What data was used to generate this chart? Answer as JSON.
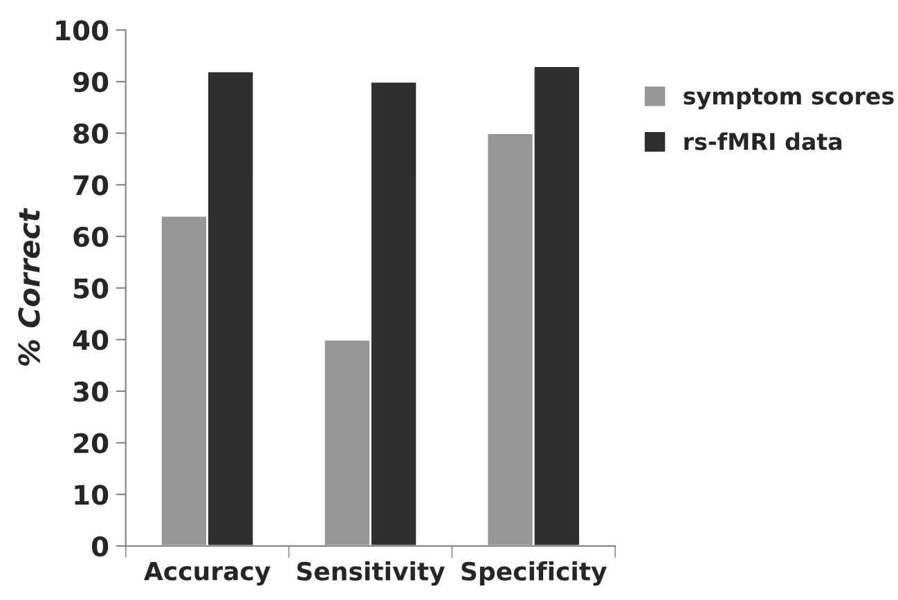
{
  "chart_data": {
    "type": "bar",
    "ylabel": "% Correct",
    "categories": [
      "Accuracy",
      "Sensitivity",
      "Specificity"
    ],
    "series": [
      {
        "name": "symptom scores",
        "color": "#969696",
        "values": [
          64,
          40,
          80
        ]
      },
      {
        "name": "rs-fMRI data",
        "color": "#2f2f2f",
        "values": [
          92,
          90,
          93
        ]
      }
    ],
    "ylim": [
      0,
      100
    ],
    "yticks": [
      0,
      10,
      20,
      30,
      40,
      50,
      60,
      70,
      80,
      90,
      100
    ],
    "grid": false,
    "legend": "top right"
  }
}
